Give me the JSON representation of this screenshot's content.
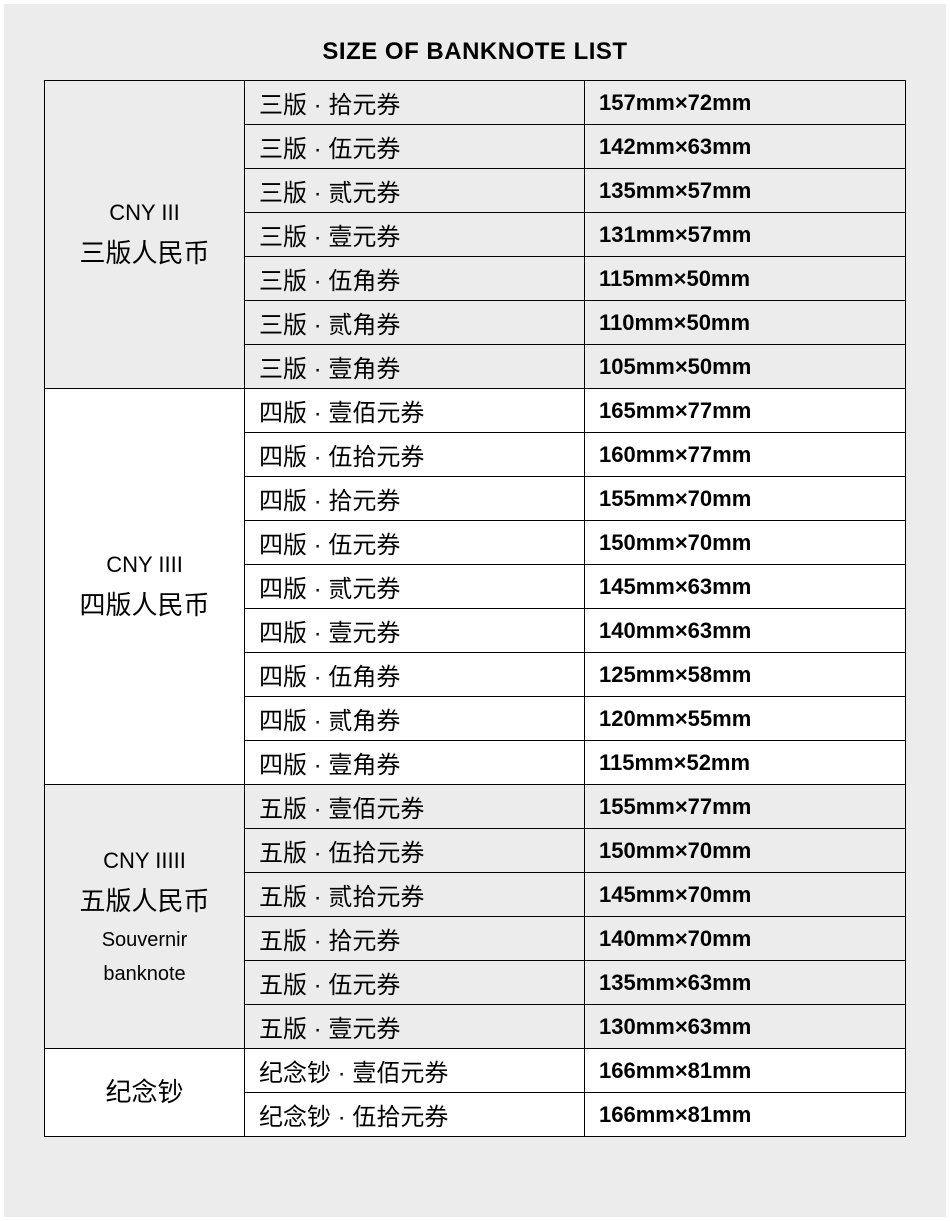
{
  "title": "SIZE OF BANKNOTE LIST",
  "colors": {
    "background": "#ececec",
    "row_alt": "#ececec",
    "row_plain": "#ffffff",
    "border": "#000000",
    "text": "#000000"
  },
  "groups": [
    {
      "cat_lines": [
        "CNY III",
        "三版人民币"
      ],
      "cat_bg": "alt",
      "rows": [
        {
          "name": "三版 · 拾元券",
          "size": "157mm×72mm",
          "bg": "alt"
        },
        {
          "name": "三版 · 伍元券",
          "size": "142mm×63mm",
          "bg": "alt"
        },
        {
          "name": "三版 · 贰元券",
          "size": "135mm×57mm",
          "bg": "alt"
        },
        {
          "name": "三版 · 壹元券",
          "size": "131mm×57mm",
          "bg": "alt"
        },
        {
          "name": "三版 · 伍角券",
          "size": "115mm×50mm",
          "bg": "alt"
        },
        {
          "name": "三版 · 贰角券",
          "size": "110mm×50mm",
          "bg": "alt"
        },
        {
          "name": "三版 · 壹角券",
          "size": "105mm×50mm",
          "bg": "alt"
        }
      ]
    },
    {
      "cat_lines": [
        "CNY IIII",
        "四版人民币"
      ],
      "cat_bg": "plain",
      "rows": [
        {
          "name": "四版 · 壹佰元券",
          "size": "165mm×77mm",
          "bg": "plain"
        },
        {
          "name": "四版 · 伍拾元券",
          "size": "160mm×77mm",
          "bg": "plain"
        },
        {
          "name": "四版 · 拾元券",
          "size": "155mm×70mm",
          "bg": "plain"
        },
        {
          "name": "四版 · 伍元券",
          "size": "150mm×70mm",
          "bg": "plain"
        },
        {
          "name": "四版 · 贰元券",
          "size": "145mm×63mm",
          "bg": "plain"
        },
        {
          "name": "四版 · 壹元券",
          "size": "140mm×63mm",
          "bg": "plain"
        },
        {
          "name": "四版 · 伍角券",
          "size": "125mm×58mm",
          "bg": "plain"
        },
        {
          "name": "四版 · 贰角券",
          "size": "120mm×55mm",
          "bg": "plain"
        },
        {
          "name": "四版 · 壹角券",
          "size": "115mm×52mm",
          "bg": "plain"
        }
      ]
    },
    {
      "cat_lines": [
        "CNY IIIII",
        "五版人民币",
        "Souvernir",
        "banknote"
      ],
      "cat_bg": "alt",
      "rows": [
        {
          "name": "五版 · 壹佰元券",
          "size": "155mm×77mm",
          "bg": "alt"
        },
        {
          "name": "五版 · 伍拾元券",
          "size": "150mm×70mm",
          "bg": "alt"
        },
        {
          "name": "五版 · 贰拾元券",
          "size": "145mm×70mm",
          "bg": "alt"
        },
        {
          "name": "五版 · 拾元券",
          "size": "140mm×70mm",
          "bg": "alt"
        },
        {
          "name": "五版 · 伍元券",
          "size": "135mm×63mm",
          "bg": "alt"
        },
        {
          "name": "五版 · 壹元券",
          "size": "130mm×63mm",
          "bg": "alt"
        }
      ]
    },
    {
      "cat_lines": [
        "纪念钞"
      ],
      "cat_bg": "plain",
      "rows": [
        {
          "name": "纪念钞 · 壹佰元券",
          "size": "166mm×81mm",
          "bg": "plain"
        },
        {
          "name": "纪念钞 · 伍拾元券",
          "size": "166mm×81mm",
          "bg": "plain"
        }
      ]
    }
  ]
}
